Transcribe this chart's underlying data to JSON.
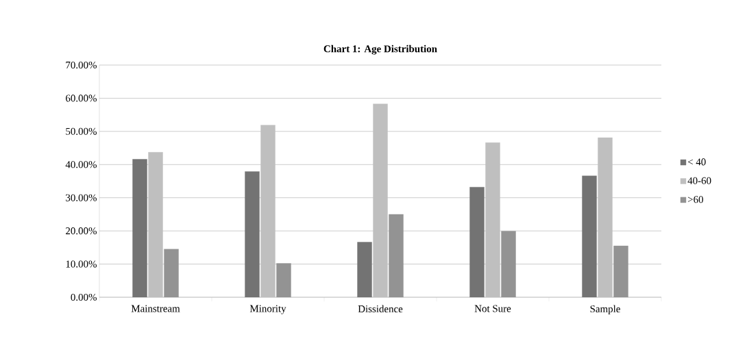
{
  "chart_data": {
    "type": "bar",
    "title": "Chart 1: Age Distribution",
    "categories": [
      "Mainstream",
      "Minority",
      "Dissidence",
      "Not Sure",
      "Sample"
    ],
    "series": [
      {
        "name": "< 40",
        "color": "#737373",
        "values": [
          41.6,
          37.9,
          16.6,
          33.2,
          36.6
        ]
      },
      {
        "name": "40-60",
        "color": "#bfbfbf",
        "values": [
          43.7,
          51.9,
          58.3,
          46.6,
          48.1
        ]
      },
      {
        "name": ">60",
        "color": "#939393",
        "values": [
          14.5,
          10.2,
          25.0,
          19.9,
          15.5
        ]
      }
    ],
    "ylim": [
      0,
      70
    ],
    "yticks": [
      {
        "value": 0,
        "label": "0.00%"
      },
      {
        "value": 10,
        "label": "10.00%"
      },
      {
        "value": 20,
        "label": "20.00%"
      },
      {
        "value": 30,
        "label": "30.00%"
      },
      {
        "value": 40,
        "label": "40.00%"
      },
      {
        "value": 50,
        "label": "50.00%"
      },
      {
        "value": 60,
        "label": "60.00%"
      },
      {
        "value": 70,
        "label": "70.00%"
      }
    ],
    "grid": "y",
    "legend": "right"
  }
}
